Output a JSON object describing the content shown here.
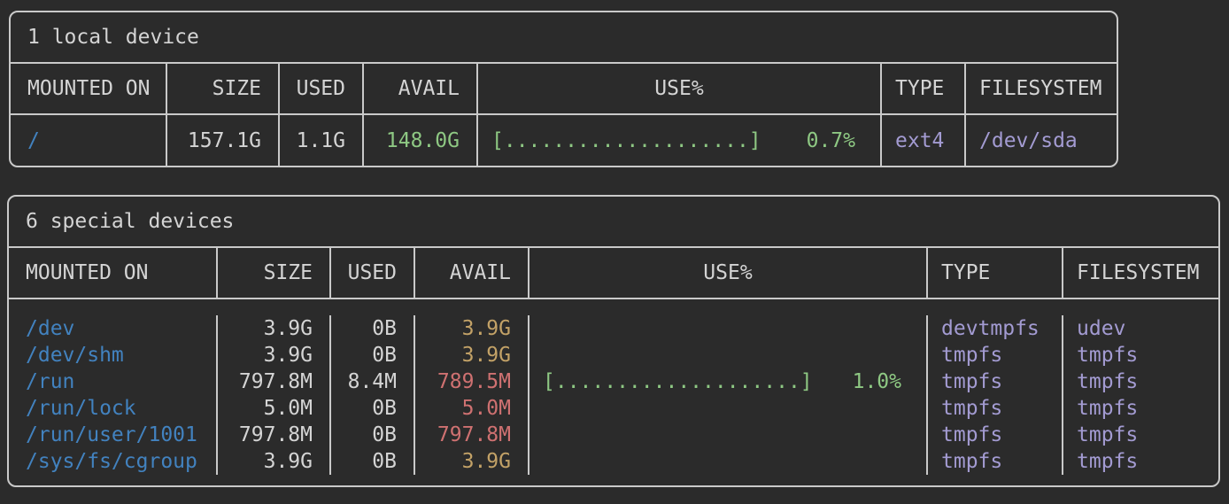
{
  "palette": {
    "background": "#2b2b2b",
    "border": "#c9c9c9",
    "text": "#d4d4d4",
    "mount_blue": "#4282bf",
    "avail_green": "#8ec883",
    "avail_yellow": "#c3a267",
    "avail_red": "#cf7171",
    "usage_green": "#8ec883",
    "type_purple": "#a39bd2"
  },
  "local": {
    "title": "1 local device",
    "headers": [
      "MOUNTED ON",
      "SIZE",
      "USED",
      "AVAIL",
      "USE%",
      "TYPE",
      "FILESYSTEM"
    ],
    "rows": [
      {
        "mounted_on": "/",
        "size": "157.1G",
        "used": "1.1G",
        "avail": "148.0G",
        "bar": "[....................]",
        "pct": "0.7%",
        "type": "ext4",
        "filesystem": "/dev/sda"
      }
    ]
  },
  "special": {
    "title": "6 special devices",
    "headers": [
      "MOUNTED ON",
      "SIZE",
      "USED",
      "AVAIL",
      "USE%",
      "TYPE",
      "FILESYSTEM"
    ],
    "rows": [
      {
        "mounted_on": "/dev",
        "size": "3.9G",
        "used": "0B",
        "avail": "3.9G",
        "bar": "",
        "pct": "",
        "type": "devtmpfs",
        "filesystem": "udev"
      },
      {
        "mounted_on": "/dev/shm",
        "size": "3.9G",
        "used": "0B",
        "avail": "3.9G",
        "bar": "",
        "pct": "",
        "type": "tmpfs",
        "filesystem": "tmpfs"
      },
      {
        "mounted_on": "/run",
        "size": "797.8M",
        "used": "8.4M",
        "avail": "789.5M",
        "bar": "[....................]",
        "pct": "1.0%",
        "type": "tmpfs",
        "filesystem": "tmpfs"
      },
      {
        "mounted_on": "/run/lock",
        "size": "5.0M",
        "used": "0B",
        "avail": "5.0M",
        "bar": "",
        "pct": "",
        "type": "tmpfs",
        "filesystem": "tmpfs"
      },
      {
        "mounted_on": "/run/user/1001",
        "size": "797.8M",
        "used": "0B",
        "avail": "797.8M",
        "bar": "",
        "pct": "",
        "type": "tmpfs",
        "filesystem": "tmpfs"
      },
      {
        "mounted_on": "/sys/fs/cgroup",
        "size": "3.9G",
        "used": "0B",
        "avail": "3.9G",
        "bar": "",
        "pct": "",
        "type": "tmpfs",
        "filesystem": "tmpfs"
      }
    ]
  }
}
